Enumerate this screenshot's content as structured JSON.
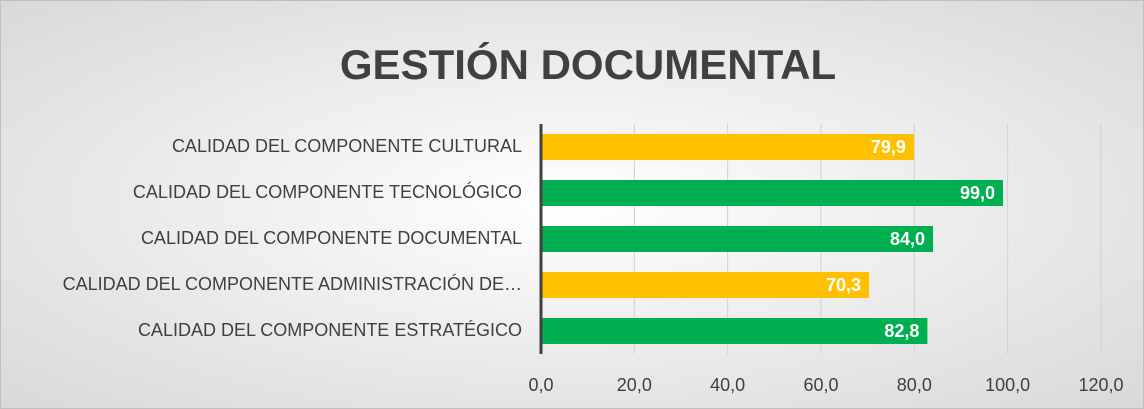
{
  "chart_data": {
    "type": "barh",
    "title": "GESTIÓN DOCUMENTAL",
    "categories": [
      "CALIDAD DEL COMPONENTE CULTURAL",
      "CALIDAD DEL COMPONENTE TECNOLÓGICO",
      "CALIDAD DEL COMPONENTE DOCUMENTAL",
      "CALIDAD DEL COMPONENTE ADMINISTRACIÓN DE…",
      "CALIDAD DEL COMPONENTE ESTRATÉGICO"
    ],
    "values": [
      79.9,
      99.0,
      84.0,
      70.3,
      82.8
    ],
    "value_labels": [
      "79,9",
      "99,0",
      "84,0",
      "70,3",
      "82,8"
    ],
    "colors": [
      "#FFC000",
      "#00B050",
      "#00B050",
      "#FFC000",
      "#00B050"
    ],
    "xlim": [
      0,
      120
    ],
    "xticks": [
      {
        "value": 0,
        "label": "0,0"
      },
      {
        "value": 20,
        "label": "20,0"
      },
      {
        "value": 40,
        "label": "40,0"
      },
      {
        "value": 60,
        "label": "60,0"
      },
      {
        "value": 80,
        "label": "80,0"
      },
      {
        "value": 100,
        "label": "100,0"
      },
      {
        "value": 120,
        "label": "120,0"
      }
    ],
    "grid": true
  }
}
